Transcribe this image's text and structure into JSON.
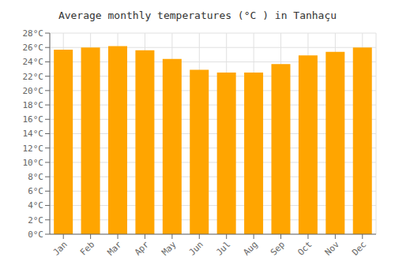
{
  "chart_data": {
    "type": "bar",
    "title": "Average monthly temperatures (°C ) in Tanhaçu",
    "categories": [
      "Jan",
      "Feb",
      "Mar",
      "Apr",
      "May",
      "Jun",
      "Jul",
      "Aug",
      "Sep",
      "Oct",
      "Nov",
      "Dec"
    ],
    "values": [
      25.7,
      26.0,
      26.2,
      25.6,
      24.4,
      22.9,
      22.5,
      22.5,
      23.7,
      24.9,
      25.4,
      26.0
    ],
    "color": "#FFA500",
    "ylim": [
      0,
      28
    ],
    "yticks": [
      {
        "value": 0,
        "label": "0°C"
      },
      {
        "value": 2,
        "label": "2°C"
      },
      {
        "value": 4,
        "label": "4°C"
      },
      {
        "value": 6,
        "label": "6°C"
      },
      {
        "value": 8,
        "label": "8°C"
      },
      {
        "value": 10,
        "label": "10°C"
      },
      {
        "value": 12,
        "label": "12°C"
      },
      {
        "value": 14,
        "label": "14°C"
      },
      {
        "value": 16,
        "label": "16°C"
      },
      {
        "value": 18,
        "label": "18°C"
      },
      {
        "value": 20,
        "label": "20°C"
      },
      {
        "value": 22,
        "label": "22°C"
      },
      {
        "value": 24,
        "label": "24°C"
      },
      {
        "value": 26,
        "label": "26°C"
      },
      {
        "value": 28,
        "label": "28°C"
      }
    ],
    "grid": true
  }
}
